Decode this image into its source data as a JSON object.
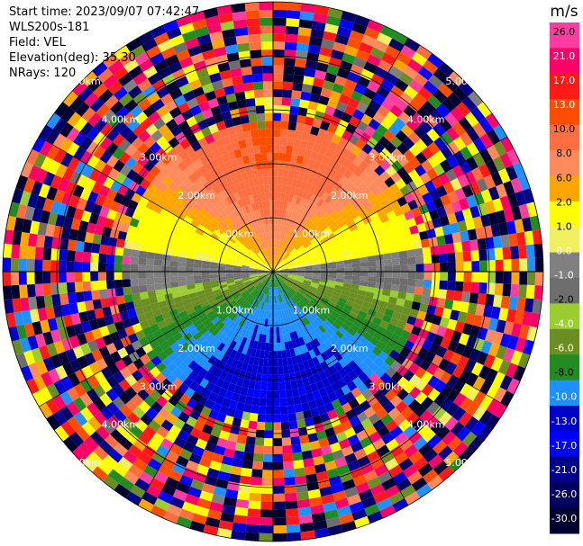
{
  "header": {
    "start_time": "Start time: 2023/09/07 07:42:47",
    "instrument": "WLS200s-181",
    "field": "Field: VEL",
    "elevation": "Elevation(deg): 35.30",
    "nrays": "NRays: 120"
  },
  "colorbar": {
    "unit": "m/s",
    "ticks": [
      "26.0",
      "21.0",
      "17.0",
      "13.0",
      "10.0",
      "8.0",
      "6.0",
      "2.0",
      "1.0",
      "0.0",
      "-1.0",
      "-2.0",
      "-4.0",
      "-6.0",
      "-8.0",
      "-10.0",
      "-13.0",
      "-17.0",
      "-21.0",
      "-26.0",
      "-30.0"
    ],
    "colors": [
      "#ff3ca0",
      "#ff0066",
      "#ff1a1a",
      "#ff4d00",
      "#ff6e40",
      "#ff8a5c",
      "#ffa500",
      "#ffff00",
      "#f0f060",
      "#808080",
      "#6e6e6e",
      "#9acd32",
      "#6b8e23",
      "#228b22",
      "#1e90ff",
      "#0000cd",
      "#0000ff",
      "#00008b",
      "#000060",
      "#000030"
    ]
  },
  "chart_data": {
    "type": "heatmap",
    "projection": "polar PPI scan",
    "field": "VEL",
    "unit": "m/s",
    "nrays": 120,
    "elevation_deg": 35.3,
    "range_rings_km": [
      1.0,
      2.0,
      3.0,
      4.0,
      5.0
    ],
    "ring_labels": [
      "1.00km",
      "2.00km",
      "3.00km",
      "4.00km",
      "5.00km"
    ],
    "max_range_km": 5.0,
    "value_range": [
      -30,
      26
    ],
    "pattern": {
      "north_sector_velocity": 13.0,
      "south_sector_velocity": -10.0,
      "east_west_velocity": 0.0,
      "valid_data_range_km": 2.7
    }
  }
}
